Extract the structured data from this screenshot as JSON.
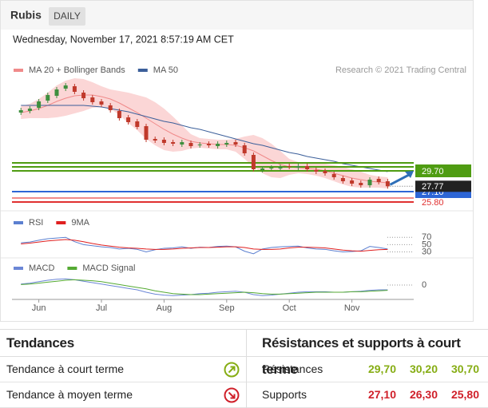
{
  "header": {
    "title": "Rubis",
    "period": "DAILY",
    "timestamp": "Wednesday, November 17, 2021 8:57:19 AM CET",
    "credit": "Research © 2021 Trading Central"
  },
  "chart_data": [
    {
      "type": "candlestick",
      "categories": [
        null,
        null,
        null,
        null,
        null,
        null,
        null,
        null,
        null,
        null,
        null,
        null,
        null,
        null,
        null,
        null,
        null,
        null,
        null,
        null,
        null,
        null,
        null,
        null,
        null,
        null,
        null,
        null,
        null,
        null,
        null,
        null,
        null,
        null,
        null,
        null,
        null,
        null,
        null,
        null,
        null,
        null
      ],
      "ylim": [
        25.3,
        41.6
      ],
      "open": [
        37.0,
        37.2,
        37.6,
        38.5,
        39.1,
        40.0,
        40.3,
        39.5,
        38.9,
        38.4,
        37.9,
        37.2,
        36.4,
        35.9,
        35.3,
        33.7,
        33.6,
        33.3,
        33.0,
        33.2,
        32.9,
        33.1,
        32.8,
        33.0,
        33.3,
        32.9,
        31.7,
        29.8,
        30.1,
        30.0,
        30.3,
        30.1,
        30.3,
        29.8,
        29.7,
        29.3,
        28.8,
        28.5,
        28.2,
        27.9,
        28.7,
        28.4
      ],
      "high": [
        37.6,
        37.8,
        38.7,
        39.5,
        40.2,
        40.7,
        40.6,
        39.8,
        39.2,
        38.7,
        38.2,
        37.5,
        36.7,
        36.2,
        35.6,
        34.0,
        33.9,
        33.6,
        33.6,
        33.5,
        33.3,
        33.4,
        33.4,
        33.5,
        33.6,
        33.2,
        32.0,
        30.3,
        30.4,
        30.5,
        30.6,
        30.6,
        30.6,
        30.1,
        30.0,
        29.6,
        29.1,
        28.8,
        28.5,
        28.9,
        29.0,
        28.7
      ],
      "low": [
        36.7,
        36.9,
        37.3,
        38.2,
        38.8,
        39.7,
        39.3,
        38.5,
        38.0,
        37.7,
        37.0,
        36.0,
        35.5,
        34.9,
        33.3,
        33.2,
        32.9,
        32.8,
        32.7,
        32.5,
        32.6,
        32.6,
        32.5,
        32.7,
        32.7,
        31.6,
        29.6,
        29.5,
        29.8,
        29.7,
        29.9,
        29.8,
        29.6,
        29.3,
        29.1,
        28.6,
        28.1,
        27.8,
        27.6,
        27.6,
        28.0,
        27.47
      ],
      "close": [
        37.3,
        37.5,
        38.4,
        39.2,
        39.9,
        40.4,
        39.6,
        38.8,
        38.3,
        38.0,
        37.3,
        36.3,
        35.8,
        35.2,
        33.6,
        33.5,
        33.2,
        33.1,
        33.3,
        32.8,
        33.0,
        32.9,
        33.1,
        33.2,
        33.0,
        31.9,
        29.9,
        30.0,
        30.1,
        30.2,
        30.2,
        30.3,
        29.9,
        29.6,
        29.4,
        28.9,
        28.4,
        28.1,
        27.9,
        28.6,
        28.3,
        27.77
      ],
      "up_color": "#3f8f3f",
      "down_color": "#c0392b",
      "series": [
        {
          "name": "MA 20 + Bollinger Bands",
          "color": "#f08a8a",
          "band_color": "#fbd6d6",
          "values": [
            37.0,
            37.2,
            37.5,
            37.9,
            38.4,
            38.8,
            39.1,
            39.2,
            39.2,
            39.0,
            38.7,
            38.2,
            37.6,
            37.0,
            36.3,
            35.6,
            34.9,
            34.3,
            33.8,
            33.4,
            33.2,
            33.1,
            33.0,
            33.0,
            32.9,
            32.6,
            32.2,
            31.6,
            31.0,
            30.5,
            30.2,
            30.1,
            30.0,
            29.9,
            29.7,
            29.4,
            29.1,
            28.8,
            28.6,
            28.4,
            28.3,
            28.2
          ],
          "upper": [
            37.8,
            38.1,
            38.7,
            39.5,
            40.4,
            41.0,
            41.3,
            41.2,
            40.8,
            40.3,
            39.9,
            39.7,
            39.5,
            39.2,
            38.9,
            38.3,
            37.5,
            36.5,
            35.4,
            34.3,
            33.8,
            33.7,
            33.6,
            33.6,
            33.7,
            34.0,
            34.2,
            33.8,
            33.1,
            32.2,
            31.2,
            30.8,
            30.7,
            30.7,
            30.6,
            30.4,
            30.2,
            29.9,
            29.6,
            29.2,
            29.0,
            28.9
          ],
          "lower": [
            36.2,
            36.3,
            36.3,
            36.3,
            36.4,
            36.6,
            36.9,
            37.2,
            37.6,
            37.7,
            37.5,
            36.7,
            35.7,
            34.8,
            33.7,
            32.9,
            32.3,
            32.1,
            32.2,
            32.5,
            32.6,
            32.5,
            32.4,
            32.4,
            32.1,
            31.2,
            30.2,
            29.4,
            28.9,
            28.8,
            29.2,
            29.4,
            29.3,
            29.1,
            28.8,
            28.4,
            28.0,
            27.7,
            27.6,
            27.6,
            27.6,
            27.5
          ]
        },
        {
          "name": "MA 50",
          "color": "#3b5f9a",
          "values": [
            37.9,
            37.9,
            37.9,
            37.9,
            37.9,
            37.9,
            37.9,
            37.9,
            37.8,
            37.7,
            37.5,
            37.3,
            37.1,
            36.8,
            36.5,
            36.2,
            35.9,
            35.7,
            35.4,
            35.1,
            34.9,
            34.6,
            34.3,
            34.0,
            33.7,
            33.4,
            33.1,
            32.9,
            32.6,
            32.3,
            32.0,
            31.8,
            31.5,
            31.3,
            31.1,
            30.9,
            30.6,
            30.4,
            30.2,
            30.0,
            29.8,
            29.6
          ]
        }
      ],
      "levels": [
        {
          "value": 30.7,
          "color": "#4f9c12"
        },
        {
          "value": 30.2,
          "color": "#4f9c12"
        },
        {
          "value": 29.7,
          "label": "29.70",
          "color": "#4f9c12",
          "boxed": true
        },
        {
          "value": 27.1,
          "label": "27.10",
          "color": "#2e66d6",
          "boxed": true
        },
        {
          "value": 26.3,
          "color": "#f08a8a"
        },
        {
          "value": 25.8,
          "label": "25.80",
          "color": "#e03030",
          "boxed": false
        }
      ],
      "last": 27.77,
      "last_color": "#222222",
      "arrow_color": "#2e6fb8"
    },
    {
      "type": "line",
      "ylim": [
        18,
        88
      ],
      "yticks": [
        70,
        50,
        30
      ],
      "series": [
        {
          "name": "RSI",
          "color": "#5b7fd0",
          "values": [
            55,
            57,
            62,
            66,
            68,
            70,
            58,
            50,
            47,
            44,
            42,
            38,
            40,
            37,
            30,
            36,
            40,
            41,
            44,
            40,
            43,
            42,
            45,
            46,
            44,
            32,
            25,
            38,
            42,
            44,
            45,
            46,
            41,
            38,
            37,
            33,
            30,
            31,
            33,
            45,
            42,
            38
          ]
        },
        {
          "name": "9MA",
          "color": "#e02020",
          "values": [
            52,
            54,
            57,
            60,
            62,
            64,
            62,
            58,
            53,
            49,
            46,
            43,
            41,
            40,
            38,
            37,
            37,
            38,
            40,
            41,
            42,
            42,
            43,
            44,
            44,
            42,
            38,
            37,
            37,
            38,
            41,
            43,
            43,
            42,
            41,
            38,
            35,
            33,
            32,
            34,
            36,
            37
          ]
        }
      ]
    },
    {
      "type": "line",
      "ylim": [
        -3,
        2
      ],
      "yticks": [
        0
      ],
      "series": [
        {
          "name": "MACD",
          "color": "#6b86d6",
          "values": [
            0.2,
            0.4,
            0.7,
            1.0,
            1.2,
            1.3,
            1.1,
            0.8,
            0.5,
            0.2,
            -0.1,
            -0.4,
            -0.7,
            -1.0,
            -1.5,
            -1.9,
            -2.1,
            -2.2,
            -2.1,
            -2.0,
            -1.8,
            -1.7,
            -1.5,
            -1.4,
            -1.3,
            -1.5,
            -2.0,
            -2.2,
            -2.1,
            -1.9,
            -1.7,
            -1.5,
            -1.4,
            -1.4,
            -1.4,
            -1.5,
            -1.5,
            -1.4,
            -1.3,
            -1.1,
            -1.0,
            -1.0
          ]
        },
        {
          "name": "MACD Signal",
          "color": "#55aa33",
          "values": [
            0.1,
            0.2,
            0.4,
            0.6,
            0.8,
            1.0,
            1.1,
            1.0,
            0.9,
            0.7,
            0.4,
            0.1,
            -0.2,
            -0.5,
            -0.8,
            -1.2,
            -1.5,
            -1.8,
            -1.9,
            -2.0,
            -2.0,
            -1.9,
            -1.8,
            -1.7,
            -1.6,
            -1.5,
            -1.6,
            -1.8,
            -1.9,
            -1.9,
            -1.8,
            -1.7,
            -1.6,
            -1.5,
            -1.5,
            -1.5,
            -1.5,
            -1.4,
            -1.4,
            -1.3,
            -1.2,
            -1.1
          ]
        }
      ],
      "xticks": [
        {
          "value": 2,
          "label": "Jun"
        },
        {
          "value": 9,
          "label": "Jul"
        },
        {
          "value": 16,
          "label": "Aug"
        },
        {
          "value": 23,
          "label": "Sep"
        },
        {
          "value": 30,
          "label": "Oct"
        },
        {
          "value": 37,
          "label": "Nov"
        }
      ]
    }
  ],
  "tables": {
    "trends": {
      "title": "Tendances",
      "rows": [
        "Tendance à court terme",
        "Tendance à moyen terme"
      ]
    },
    "levels": {
      "title": "Résistances et supports à court terme",
      "rows": [
        {
          "label": "Résistances",
          "color": "#86ad14",
          "values": [
            "29,70",
            "30,20",
            "30,70"
          ]
        },
        {
          "label": "Supports",
          "color": "#d0202a",
          "values": [
            "27,10",
            "26,30",
            "25,80"
          ]
        }
      ]
    }
  }
}
